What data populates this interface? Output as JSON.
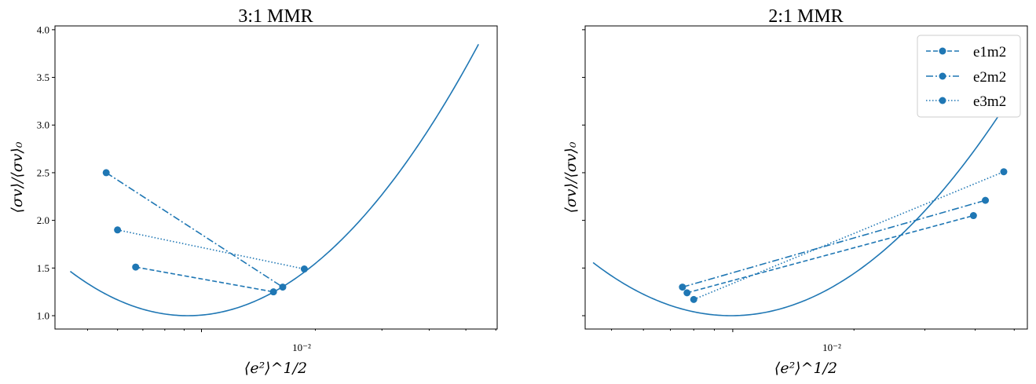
{
  "colors": {
    "series": "#1f77b4",
    "axis": "#000000",
    "legend_border": "#cccccc"
  },
  "chart_data": [
    {
      "type": "line",
      "title": "3:1 MMR",
      "xlabel": "⟨e²⟩^1/2",
      "ylabel": "⟨σv⟩/⟨σv⟩₀",
      "xscale": "log",
      "x_tick_label": "10⁻²",
      "ylim": [
        0.86,
        4.04
      ],
      "y_ticks": [
        "1.0",
        "1.5",
        "2.0",
        "2.5",
        "3.0",
        "3.5",
        "4.0"
      ],
      "y_tick_values": [
        1.0,
        1.5,
        2.0,
        2.5,
        3.0,
        3.5,
        4.0
      ],
      "curve": {
        "x_min": 0.0045,
        "x_max": 0.054,
        "x_opt": 0.0092,
        "a": 4.82
      },
      "series": [
        {
          "name": "e1m2",
          "style": "dashed",
          "x": [
            0.0067,
            0.0155
          ],
          "y": [
            1.51,
            1.25
          ]
        },
        {
          "name": "e2m2",
          "style": "dashdot",
          "x": [
            0.0056,
            0.0164
          ],
          "y": [
            2.5,
            1.3
          ]
        },
        {
          "name": "e3m2",
          "style": "dotted",
          "x": [
            0.006,
            0.0187
          ],
          "y": [
            1.9,
            1.49
          ]
        }
      ],
      "legend": null
    },
    {
      "type": "line",
      "title": "2:1 MMR",
      "xlabel": "⟨e²⟩^1/2",
      "ylabel": "⟨σv⟩/⟨σv⟩₀",
      "xscale": "log",
      "x_tick_label": "10⁻²",
      "ylim": [
        0.86,
        4.04
      ],
      "y_tick_values": [
        1.0,
        1.5,
        2.0,
        2.5,
        3.0,
        3.5,
        4.0
      ],
      "curve": {
        "x_min": 0.0045,
        "x_max": 0.051,
        "x_opt": 0.0099,
        "a": 4.75
      },
      "series": [
        {
          "name": "e1m2",
          "style": "dashed",
          "x": [
            0.0077,
            0.0396
          ],
          "y": [
            1.24,
            2.05
          ]
        },
        {
          "name": "e2m2",
          "style": "dashdot",
          "x": [
            0.0075,
            0.0424
          ],
          "y": [
            1.3,
            2.21
          ]
        },
        {
          "name": "e3m2",
          "style": "dotted",
          "x": [
            0.008,
            0.0471
          ],
          "y": [
            1.17,
            2.51
          ]
        }
      ],
      "legend": {
        "position": "top-right",
        "entries": [
          "e1m2",
          "e2m2",
          "e3m2"
        ]
      }
    }
  ]
}
